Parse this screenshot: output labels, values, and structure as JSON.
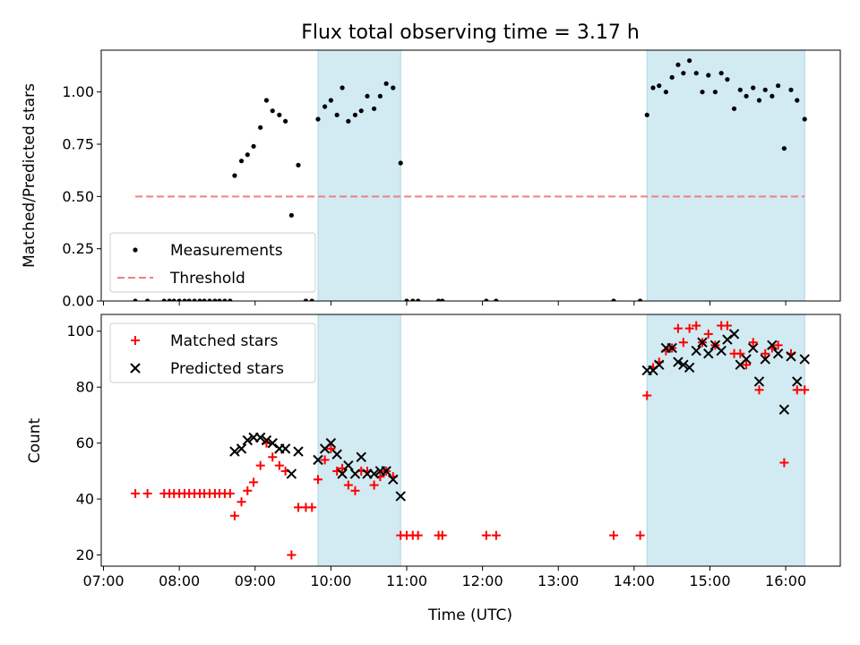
{
  "chart_data": {
    "title": "Flux total observing time = 3.17 h",
    "xlabel": "Time (UTC)",
    "x_unit": "hours (UTC, decimal)",
    "xlim": [
      6.97,
      16.72
    ],
    "x_ticks": [
      {
        "v": 7,
        "label": "07:00"
      },
      {
        "v": 8,
        "label": "08:00"
      },
      {
        "v": 9,
        "label": "09:00"
      },
      {
        "v": 10,
        "label": "10:00"
      },
      {
        "v": 11,
        "label": "11:00"
      },
      {
        "v": 12,
        "label": "12:00"
      },
      {
        "v": 13,
        "label": "13:00"
      },
      {
        "v": 14,
        "label": "14:00"
      },
      {
        "v": 15,
        "label": "15:00"
      },
      {
        "v": 16,
        "label": "16:00"
      }
    ],
    "shaded_intervals": [
      [
        9.83,
        10.92
      ],
      [
        14.17,
        16.25
      ]
    ],
    "shade_color": "#add8e6",
    "panels": [
      {
        "type": "scatter",
        "ylabel": "Matched/Predicted stars",
        "ylim": [
          0,
          1.2
        ],
        "y_ticks": [
          {
            "v": 0,
            "label": "0.00"
          },
          {
            "v": 0.25,
            "label": "0.25"
          },
          {
            "v": 0.5,
            "label": "0.50"
          },
          {
            "v": 0.75,
            "label": "0.75"
          },
          {
            "v": 1.0,
            "label": "1.00"
          }
        ],
        "series": [
          {
            "name": "Measurements",
            "marker": "dot",
            "color": "#000000",
            "points": [
              [
                7.42,
                0
              ],
              [
                7.58,
                0
              ],
              [
                7.8,
                0
              ],
              [
                7.87,
                0
              ],
              [
                7.93,
                0
              ],
              [
                8.0,
                0
              ],
              [
                8.07,
                0
              ],
              [
                8.13,
                0
              ],
              [
                8.2,
                0
              ],
              [
                8.27,
                0
              ],
              [
                8.33,
                0
              ],
              [
                8.4,
                0
              ],
              [
                8.47,
                0
              ],
              [
                8.53,
                0
              ],
              [
                8.6,
                0
              ],
              [
                8.67,
                0
              ],
              [
                8.73,
                0.6
              ],
              [
                8.82,
                0.67
              ],
              [
                8.9,
                0.7
              ],
              [
                8.98,
                0.74
              ],
              [
                9.07,
                0.83
              ],
              [
                9.15,
                0.96
              ],
              [
                9.23,
                0.91
              ],
              [
                9.32,
                0.89
              ],
              [
                9.4,
                0.86
              ],
              [
                9.48,
                0.41
              ],
              [
                9.57,
                0.65
              ],
              [
                9.67,
                0
              ],
              [
                9.75,
                0
              ],
              [
                9.83,
                0.87
              ],
              [
                9.92,
                0.93
              ],
              [
                10.0,
                0.96
              ],
              [
                10.08,
                0.89
              ],
              [
                10.15,
                1.02
              ],
              [
                10.23,
                0.86
              ],
              [
                10.32,
                0.89
              ],
              [
                10.4,
                0.91
              ],
              [
                10.48,
                0.98
              ],
              [
                10.57,
                0.92
              ],
              [
                10.65,
                0.98
              ],
              [
                10.73,
                1.04
              ],
              [
                10.82,
                1.02
              ],
              [
                10.92,
                0.66
              ],
              [
                11.0,
                0
              ],
              [
                11.08,
                0
              ],
              [
                11.15,
                0
              ],
              [
                11.42,
                0
              ],
              [
                11.47,
                0
              ],
              [
                12.05,
                0
              ],
              [
                12.18,
                0
              ],
              [
                13.73,
                0
              ],
              [
                14.08,
                0
              ],
              [
                14.17,
                0.89
              ],
              [
                14.25,
                1.02
              ],
              [
                14.33,
                1.03
              ],
              [
                14.42,
                1.0
              ],
              [
                14.5,
                1.07
              ],
              [
                14.58,
                1.13
              ],
              [
                14.65,
                1.09
              ],
              [
                14.73,
                1.15
              ],
              [
                14.82,
                1.09
              ],
              [
                14.9,
                1.0
              ],
              [
                14.98,
                1.08
              ],
              [
                15.07,
                1.0
              ],
              [
                15.15,
                1.09
              ],
              [
                15.23,
                1.06
              ],
              [
                15.32,
                0.92
              ],
              [
                15.4,
                1.01
              ],
              [
                15.48,
                0.98
              ],
              [
                15.57,
                1.02
              ],
              [
                15.65,
                0.96
              ],
              [
                15.73,
                1.01
              ],
              [
                15.82,
                0.98
              ],
              [
                15.9,
                1.03
              ],
              [
                15.98,
                0.73
              ],
              [
                16.07,
                1.01
              ],
              [
                16.15,
                0.96
              ],
              [
                16.25,
                0.87
              ]
            ]
          },
          {
            "name": "Threshold",
            "marker": "dashed-line",
            "color": "#f08080",
            "points": [
              [
                7.42,
                0.5
              ],
              [
                16.25,
                0.5
              ]
            ]
          }
        ],
        "legend": "lower-left"
      },
      {
        "type": "scatter",
        "ylabel": "Count",
        "ylim": [
          16,
          106
        ],
        "y_ticks": [
          {
            "v": 20,
            "label": "20"
          },
          {
            "v": 40,
            "label": "40"
          },
          {
            "v": 60,
            "label": "60"
          },
          {
            "v": 80,
            "label": "80"
          },
          {
            "v": 100,
            "label": "100"
          }
        ],
        "series": [
          {
            "name": "Matched stars",
            "marker": "plus",
            "color": "#ff0000",
            "points": [
              [
                7.42,
                42
              ],
              [
                7.58,
                42
              ],
              [
                7.8,
                42
              ],
              [
                7.87,
                42
              ],
              [
                7.93,
                42
              ],
              [
                8.0,
                42
              ],
              [
                8.07,
                42
              ],
              [
                8.13,
                42
              ],
              [
                8.2,
                42
              ],
              [
                8.27,
                42
              ],
              [
                8.33,
                42
              ],
              [
                8.4,
                42
              ],
              [
                8.47,
                42
              ],
              [
                8.53,
                42
              ],
              [
                8.6,
                42
              ],
              [
                8.67,
                42
              ],
              [
                8.73,
                34
              ],
              [
                8.82,
                39
              ],
              [
                8.9,
                43
              ],
              [
                8.98,
                46
              ],
              [
                9.07,
                52
              ],
              [
                9.15,
                60
              ],
              [
                9.23,
                55
              ],
              [
                9.32,
                52
              ],
              [
                9.4,
                50
              ],
              [
                9.48,
                20
              ],
              [
                9.57,
                37
              ],
              [
                9.67,
                37
              ],
              [
                9.75,
                37
              ],
              [
                9.83,
                47
              ],
              [
                9.92,
                54
              ],
              [
                10.0,
                58
              ],
              [
                10.08,
                50
              ],
              [
                10.15,
                51
              ],
              [
                10.23,
                45
              ],
              [
                10.32,
                43
              ],
              [
                10.4,
                50
              ],
              [
                10.48,
                50
              ],
              [
                10.57,
                45
              ],
              [
                10.65,
                48
              ],
              [
                10.73,
                50
              ],
              [
                10.82,
                48
              ],
              [
                10.92,
                27
              ],
              [
                11.0,
                27
              ],
              [
                11.08,
                27
              ],
              [
                11.15,
                27
              ],
              [
                11.42,
                27
              ],
              [
                11.47,
                27
              ],
              [
                12.05,
                27
              ],
              [
                12.18,
                27
              ],
              [
                13.73,
                27
              ],
              [
                14.08,
                27
              ],
              [
                14.17,
                77
              ],
              [
                14.25,
                87
              ],
              [
                14.33,
                89
              ],
              [
                14.42,
                93
              ],
              [
                14.5,
                94
              ],
              [
                14.58,
                101
              ],
              [
                14.65,
                96
              ],
              [
                14.73,
                101
              ],
              [
                14.82,
                102
              ],
              [
                14.9,
                96
              ],
              [
                14.98,
                99
              ],
              [
                15.07,
                95
              ],
              [
                15.15,
                102
              ],
              [
                15.23,
                102
              ],
              [
                15.32,
                92
              ],
              [
                15.4,
                92
              ],
              [
                15.48,
                88
              ],
              [
                15.57,
                96
              ],
              [
                15.65,
                79
              ],
              [
                15.73,
                92
              ],
              [
                15.82,
                94
              ],
              [
                15.9,
                95
              ],
              [
                15.98,
                53
              ],
              [
                16.07,
                92
              ],
              [
                16.15,
                79
              ],
              [
                16.25,
                79
              ]
            ]
          },
          {
            "name": "Predicted stars",
            "marker": "x",
            "color": "#000000",
            "points": [
              [
                8.73,
                57
              ],
              [
                8.82,
                58
              ],
              [
                8.9,
                61
              ],
              [
                8.98,
                62
              ],
              [
                9.07,
                62
              ],
              [
                9.15,
                61
              ],
              [
                9.23,
                60
              ],
              [
                9.32,
                58
              ],
              [
                9.4,
                58
              ],
              [
                9.48,
                49
              ],
              [
                9.57,
                57
              ],
              [
                9.83,
                54
              ],
              [
                9.92,
                58
              ],
              [
                10.0,
                60
              ],
              [
                10.08,
                56
              ],
              [
                10.15,
                49
              ],
              [
                10.23,
                52
              ],
              [
                10.32,
                49
              ],
              [
                10.4,
                55
              ],
              [
                10.48,
                49
              ],
              [
                10.57,
                49
              ],
              [
                10.65,
                50
              ],
              [
                10.73,
                50
              ],
              [
                10.82,
                47
              ],
              [
                10.92,
                41
              ],
              [
                14.17,
                86
              ],
              [
                14.25,
                86
              ],
              [
                14.33,
                88
              ],
              [
                14.42,
                94
              ],
              [
                14.5,
                94
              ],
              [
                14.58,
                89
              ],
              [
                14.65,
                88
              ],
              [
                14.73,
                87
              ],
              [
                14.82,
                93
              ],
              [
                14.9,
                96
              ],
              [
                14.98,
                92
              ],
              [
                15.07,
                95
              ],
              [
                15.15,
                93
              ],
              [
                15.23,
                97
              ],
              [
                15.32,
                99
              ],
              [
                15.4,
                88
              ],
              [
                15.48,
                90
              ],
              [
                15.57,
                94
              ],
              [
                15.65,
                82
              ],
              [
                15.73,
                90
              ],
              [
                15.82,
                95
              ],
              [
                15.9,
                92
              ],
              [
                15.98,
                72
              ],
              [
                16.07,
                91
              ],
              [
                16.15,
                82
              ],
              [
                16.25,
                90
              ]
            ]
          }
        ],
        "legend": "upper-left"
      }
    ]
  }
}
